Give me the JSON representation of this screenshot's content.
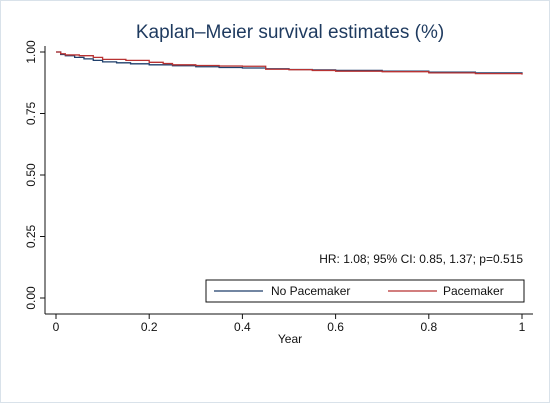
{
  "chart_data": {
    "type": "line",
    "title": "Kaplan–Meier survival estimates (%)",
    "xlabel": "Year",
    "ylabel": "",
    "xlim": [
      0,
      1
    ],
    "ylim": [
      0,
      1
    ],
    "xticks": [
      0,
      0.2,
      0.4,
      0.6,
      0.8,
      1
    ],
    "xtick_labels": [
      "0",
      "0.2",
      "0.4",
      "0.6",
      "0.8",
      "1"
    ],
    "yticks": [
      0,
      0.25,
      0.5,
      0.75,
      1
    ],
    "ytick_labels": [
      "0.00",
      "0.25",
      "0.50",
      "0.75",
      "1.00"
    ],
    "grid": false,
    "legend_position": "bottom-right",
    "annotation": "HR: 1.08; 95% CI: 0.85, 1.37; p=0.515",
    "series": [
      {
        "name": "No Pacemaker",
        "color": "#1f3f6b",
        "step": true,
        "x": [
          0,
          0.01,
          0.02,
          0.04,
          0.06,
          0.08,
          0.1,
          0.13,
          0.16,
          0.2,
          0.25,
          0.3,
          0.35,
          0.4,
          0.45,
          0.5,
          0.55,
          0.6,
          0.7,
          0.8,
          0.9,
          1.0
        ],
        "y": [
          1.0,
          0.99,
          0.985,
          0.978,
          0.972,
          0.966,
          0.96,
          0.956,
          0.952,
          0.948,
          0.944,
          0.94,
          0.937,
          0.935,
          0.932,
          0.929,
          0.927,
          0.925,
          0.922,
          0.918,
          0.915,
          0.912
        ]
      },
      {
        "name": "Pacemaker",
        "color": "#b83232",
        "step": true,
        "x": [
          0,
          0.01,
          0.02,
          0.05,
          0.08,
          0.1,
          0.15,
          0.2,
          0.23,
          0.25,
          0.3,
          0.35,
          0.4,
          0.45,
          0.5,
          0.55,
          0.6,
          0.7,
          0.8,
          0.9,
          1.0
        ],
        "y": [
          1.0,
          0.993,
          0.988,
          0.985,
          0.978,
          0.97,
          0.966,
          0.958,
          0.953,
          0.948,
          0.945,
          0.943,
          0.942,
          0.93,
          0.928,
          0.925,
          0.922,
          0.92,
          0.915,
          0.912,
          0.908
        ]
      }
    ]
  }
}
